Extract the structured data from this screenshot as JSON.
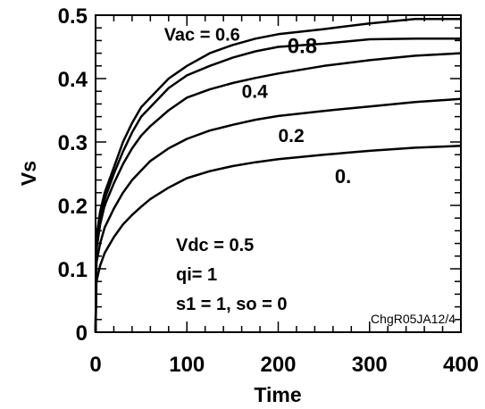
{
  "chart_data": {
    "type": "line",
    "title": "",
    "xlabel": "Time",
    "ylabel": "Vs",
    "xlim": [
      0,
      400
    ],
    "ylim": [
      0,
      0.5
    ],
    "x_ticks": [
      "0",
      "100",
      "200",
      "300",
      "400"
    ],
    "y_ticks": [
      "0",
      "0.1",
      "0.2",
      "0.3",
      "0.4",
      "0.5"
    ],
    "grid": false,
    "x": [
      0,
      1,
      5,
      10,
      20,
      30,
      40,
      50,
      60,
      80,
      100,
      125,
      150,
      175,
      200,
      250,
      300,
      350,
      400
    ],
    "series": [
      {
        "name": "Vac = 0.6",
        "values": [
          0,
          0.15,
          0.19,
          0.22,
          0.26,
          0.3,
          0.33,
          0.355,
          0.37,
          0.4,
          0.42,
          0.44,
          0.453,
          0.463,
          0.47,
          0.478,
          0.487,
          0.494,
          0.494
        ]
      },
      {
        "name": "0.8",
        "values": [
          0,
          0.14,
          0.18,
          0.21,
          0.25,
          0.285,
          0.315,
          0.34,
          0.355,
          0.385,
          0.405,
          0.42,
          0.433,
          0.443,
          0.45,
          0.455,
          0.462,
          0.463,
          0.463
        ]
      },
      {
        "name": "0.4",
        "values": [
          0,
          0.13,
          0.17,
          0.2,
          0.235,
          0.265,
          0.29,
          0.31,
          0.325,
          0.35,
          0.37,
          0.383,
          0.393,
          0.401,
          0.408,
          0.42,
          0.429,
          0.436,
          0.44
        ]
      },
      {
        "name": "0.2",
        "values": [
          0,
          0.11,
          0.14,
          0.165,
          0.195,
          0.22,
          0.24,
          0.255,
          0.27,
          0.29,
          0.305,
          0.318,
          0.327,
          0.335,
          0.341,
          0.349,
          0.356,
          0.363,
          0.368
        ]
      },
      {
        "name": "0.",
        "values": [
          0,
          0.08,
          0.105,
          0.125,
          0.15,
          0.17,
          0.185,
          0.198,
          0.21,
          0.228,
          0.243,
          0.254,
          0.262,
          0.268,
          0.273,
          0.28,
          0.286,
          0.291,
          0.294
        ]
      }
    ],
    "series_labels": [
      {
        "text": "Vac = 0.6",
        "x": 75,
        "y": 0.46,
        "size": 20
      },
      {
        "text": "0.8",
        "x": 210,
        "y": 0.44,
        "size": 24
      },
      {
        "text": "0.4",
        "x": 160,
        "y": 0.37,
        "size": 21
      },
      {
        "text": "0.2",
        "x": 200,
        "y": 0.3,
        "size": 21
      },
      {
        "text": "0.",
        "x": 262,
        "y": 0.235,
        "size": 22
      }
    ],
    "annotations": [
      "Vdc = 0.5",
      "qi= 1",
      "s1 = 1, so = 0"
    ],
    "tag": "ChgR05JA12/4"
  }
}
